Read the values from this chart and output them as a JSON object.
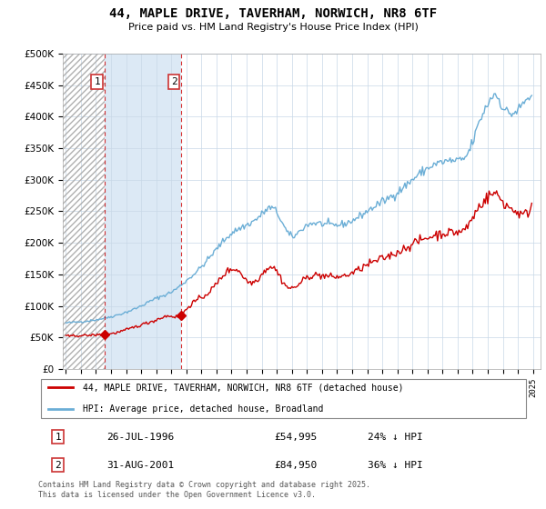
{
  "title": "44, MAPLE DRIVE, TAVERHAM, NORWICH, NR8 6TF",
  "subtitle": "Price paid vs. HM Land Registry's House Price Index (HPI)",
  "legend_line1": "44, MAPLE DRIVE, TAVERHAM, NORWICH, NR8 6TF (detached house)",
  "legend_line2": "HPI: Average price, detached house, Broadland",
  "footer": "Contains HM Land Registry data © Crown copyright and database right 2025.\nThis data is licensed under the Open Government Licence v3.0.",
  "annotation1_label": "1",
  "annotation1_date": "26-JUL-1996",
  "annotation1_price": "£54,995",
  "annotation1_hpi": "24% ↓ HPI",
  "annotation1_year": 1996.57,
  "annotation1_value": 54995,
  "annotation2_label": "2",
  "annotation2_date": "31-AUG-2001",
  "annotation2_price": "£84,950",
  "annotation2_hpi": "36% ↓ HPI",
  "annotation2_year": 2001.67,
  "annotation2_value": 84950,
  "hpi_color": "#6baed6",
  "price_color": "#cc0000",
  "hatch_bg_color": "#ffffff",
  "span_bg_color": "#dce9f5",
  "ylim": [
    0,
    500000
  ],
  "yticks": [
    0,
    50000,
    100000,
    150000,
    200000,
    250000,
    300000,
    350000,
    400000,
    450000,
    500000
  ],
  "xlim_start": 1993.8,
  "xlim_end": 2025.5
}
